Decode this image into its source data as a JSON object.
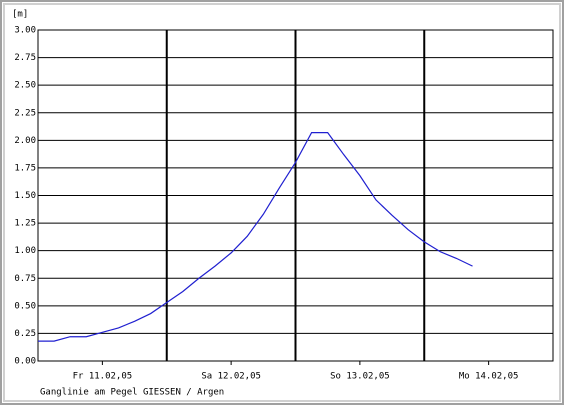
{
  "chart_data": {
    "type": "line",
    "y_unit": "[m]",
    "caption": "Ganglinie am Pegel GIESSEN / Argen",
    "x": [
      0,
      0.125,
      0.25,
      0.375,
      0.5,
      0.625,
      0.75,
      0.875,
      1,
      1.125,
      1.25,
      1.375,
      1.5,
      1.625,
      1.75,
      1.875,
      2,
      2.125,
      2.25,
      2.375,
      2.5,
      2.625,
      2.75,
      2.875,
      3,
      3.125,
      3.25,
      3.375
    ],
    "series": [
      {
        "color": "#2020d0",
        "values": [
          0.18,
          0.18,
          0.22,
          0.22,
          0.26,
          0.3,
          0.36,
          0.43,
          0.53,
          0.63,
          0.75,
          0.86,
          0.98,
          1.13,
          1.33,
          1.57,
          1.8,
          2.07,
          2.07,
          1.87,
          1.68,
          1.46,
          1.32,
          1.19,
          1.08,
          0.99,
          0.93,
          0.86
        ]
      }
    ],
    "xlim": [
      0,
      4
    ],
    "xticks": [
      {
        "value": 0.5,
        "label": "Fr 11.02,05"
      },
      {
        "value": 1.5,
        "label": "Sa 12.02,05"
      },
      {
        "value": 2.5,
        "label": "So 13.02,05"
      },
      {
        "value": 3.5,
        "label": "Mo 14.02,05"
      }
    ],
    "ylim": [
      0,
      3
    ],
    "yticks": [
      {
        "value": 0,
        "label": "0.00"
      },
      {
        "value": 0.25,
        "label": "0.25"
      },
      {
        "value": 0.5,
        "label": "0.50"
      },
      {
        "value": 0.75,
        "label": "0.75"
      },
      {
        "value": 1,
        "label": "1.00"
      },
      {
        "value": 1.25,
        "label": "1.25"
      },
      {
        "value": 1.5,
        "label": "1.50"
      },
      {
        "value": 1.75,
        "label": "1.75"
      },
      {
        "value": 2,
        "label": "2.00"
      },
      {
        "value": 2.25,
        "label": "2.25"
      },
      {
        "value": 2.5,
        "label": "2.50"
      },
      {
        "value": 2.75,
        "label": "2.75"
      },
      {
        "value": 3,
        "label": "3.00"
      }
    ],
    "grid": true
  }
}
